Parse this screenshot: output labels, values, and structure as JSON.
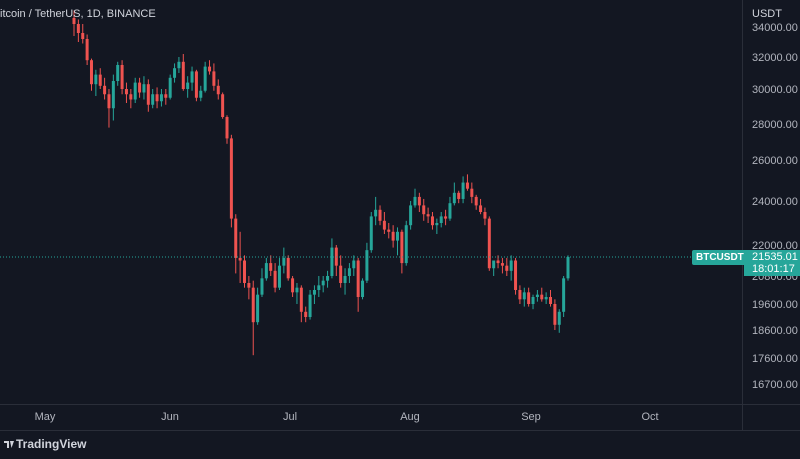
{
  "header": {
    "title": "itcoin / TetherUS, 1D, BINANCE"
  },
  "price_axis": {
    "unit": "USDT"
  },
  "current": {
    "symbol": "BTCUSDT",
    "price": "21535.01",
    "countdown": "18:01:17"
  },
  "footer": {
    "brand": "TradingView"
  },
  "colors": {
    "up": "#26a69a",
    "down": "#ef5350",
    "bg": "#131722",
    "grid": "#1e222d",
    "last_line": "#26a69a"
  },
  "chart_data": {
    "type": "candlestick",
    "title": "itcoin / TetherUS, 1D, BINANCE",
    "ylabel": "USDT",
    "y_ticks": [
      "34000.00",
      "32000.00",
      "30000.00",
      "28000.00",
      "26000.00",
      "24000.00",
      "22000.00",
      "20800.00",
      "19600.00",
      "18600.00",
      "17600.00",
      "16700.00"
    ],
    "x_ticks": [
      "May",
      "Jun",
      "Jul",
      "Aug",
      "Sep",
      "Oct"
    ],
    "scale": "log",
    "ylim": [
      16000,
      35500
    ],
    "series": [
      {
        "values": [
          [
            34600,
            35100,
            33400,
            34200
          ],
          [
            34200,
            34500,
            33000,
            33600
          ],
          [
            33600,
            34200,
            32900,
            33200
          ],
          [
            33200,
            33500,
            31500,
            31800
          ],
          [
            31800,
            31900,
            29900,
            30300
          ],
          [
            30300,
            31200,
            29600,
            30900
          ],
          [
            30900,
            31300,
            30000,
            30200
          ],
          [
            30200,
            30700,
            29400,
            29700
          ],
          [
            29700,
            30000,
            27800,
            28900
          ],
          [
            28900,
            30900,
            28200,
            30500
          ],
          [
            30500,
            31700,
            30200,
            31500
          ],
          [
            31500,
            31800,
            29700,
            30000
          ],
          [
            30000,
            30400,
            29200,
            29700
          ],
          [
            29700,
            30000,
            28900,
            29400
          ],
          [
            29400,
            30700,
            29200,
            30400
          ],
          [
            30400,
            30700,
            29500,
            29800
          ],
          [
            29800,
            30800,
            29400,
            30300
          ],
          [
            30300,
            30600,
            28700,
            29100
          ],
          [
            29100,
            30000,
            28900,
            29700
          ],
          [
            29700,
            30100,
            28900,
            29300
          ],
          [
            29300,
            30000,
            29000,
            29700
          ],
          [
            29700,
            30000,
            29100,
            29500
          ],
          [
            29500,
            30900,
            29400,
            30700
          ],
          [
            30700,
            31600,
            30400,
            31300
          ],
          [
            31300,
            32000,
            31000,
            31700
          ],
          [
            31700,
            32200,
            29900,
            30000
          ],
          [
            30000,
            30800,
            29500,
            30400
          ],
          [
            30400,
            31400,
            29900,
            31100
          ],
          [
            31100,
            31200,
            29300,
            29500
          ],
          [
            29500,
            30200,
            29300,
            29900
          ],
          [
            29900,
            31700,
            29800,
            31400
          ],
          [
            31400,
            31800,
            30900,
            31100
          ],
          [
            31100,
            31600,
            29900,
            30200
          ],
          [
            30200,
            30600,
            29400,
            29700
          ],
          [
            29700,
            29800,
            28300,
            28400
          ],
          [
            28400,
            28500,
            26900,
            27200
          ],
          [
            27200,
            27400,
            22800,
            23200
          ],
          [
            23200,
            23400,
            20900,
            21500
          ],
          [
            21500,
            22600,
            20500,
            21400
          ],
          [
            21400,
            21600,
            20300,
            20500
          ],
          [
            20500,
            20800,
            19800,
            20300
          ],
          [
            20300,
            20600,
            17700,
            18900
          ],
          [
            18900,
            20300,
            18800,
            20000
          ],
          [
            20000,
            21100,
            19900,
            20700
          ],
          [
            20700,
            21500,
            20600,
            21300
          ],
          [
            21300,
            21600,
            20800,
            21000
          ],
          [
            21000,
            21300,
            20100,
            20300
          ],
          [
            20300,
            21500,
            20200,
            21200
          ],
          [
            21200,
            21900,
            20900,
            21500
          ],
          [
            21500,
            21600,
            20600,
            20700
          ],
          [
            20700,
            20800,
            19900,
            20100
          ],
          [
            20100,
            20500,
            19600,
            20300
          ],
          [
            20300,
            20400,
            18900,
            19300
          ],
          [
            19300,
            19500,
            18900,
            19100
          ],
          [
            19100,
            20200,
            19000,
            20000
          ],
          [
            20000,
            20400,
            19600,
            20200
          ],
          [
            20200,
            20800,
            19900,
            20400
          ],
          [
            20400,
            20800,
            20100,
            20600
          ],
          [
            20600,
            21000,
            20300,
            20800
          ],
          [
            20800,
            22300,
            20700,
            21900
          ],
          [
            21900,
            22000,
            20800,
            21200
          ],
          [
            21200,
            21600,
            20300,
            20500
          ],
          [
            20500,
            21100,
            20000,
            20800
          ],
          [
            20800,
            21300,
            20500,
            21100
          ],
          [
            21100,
            21600,
            20800,
            21400
          ],
          [
            21400,
            21500,
            19300,
            19900
          ],
          [
            19900,
            20700,
            19800,
            20600
          ],
          [
            20600,
            22100,
            20500,
            21800
          ],
          [
            21800,
            23500,
            21700,
            23300
          ],
          [
            23300,
            24200,
            22900,
            23600
          ],
          [
            23600,
            23800,
            22900,
            23100
          ],
          [
            23100,
            23500,
            22500,
            22700
          ],
          [
            22700,
            23000,
            22300,
            22600
          ],
          [
            22600,
            22900,
            21900,
            22200
          ],
          [
            22200,
            22800,
            21600,
            22600
          ],
          [
            22600,
            22700,
            20900,
            21300
          ],
          [
            21300,
            23100,
            21200,
            22900
          ],
          [
            22900,
            24000,
            22700,
            23800
          ],
          [
            23800,
            24600,
            23700,
            24200
          ],
          [
            24200,
            24400,
            23500,
            23800
          ],
          [
            23800,
            24100,
            23100,
            23400
          ],
          [
            23400,
            23700,
            23000,
            23300
          ],
          [
            23300,
            23500,
            22700,
            22900
          ],
          [
            22900,
            23200,
            22500,
            23000
          ],
          [
            23000,
            23500,
            22800,
            23300
          ],
          [
            23300,
            23600,
            22900,
            23200
          ],
          [
            23200,
            24200,
            23100,
            23900
          ],
          [
            23900,
            24900,
            23800,
            24400
          ],
          [
            24400,
            24500,
            23900,
            24100
          ],
          [
            24100,
            25200,
            23900,
            24900
          ],
          [
            24900,
            25300,
            24500,
            24600
          ],
          [
            24600,
            24900,
            23900,
            24200
          ],
          [
            24200,
            24300,
            23600,
            23800
          ],
          [
            23800,
            24100,
            23400,
            23500
          ],
          [
            23500,
            23700,
            22900,
            23200
          ],
          [
            23200,
            23300,
            21000,
            21100
          ],
          [
            21100,
            21400,
            20800,
            21400
          ],
          [
            21400,
            21600,
            21100,
            21300
          ],
          [
            21300,
            21500,
            20900,
            21200
          ],
          [
            21200,
            21500,
            20800,
            21000
          ],
          [
            21000,
            21600,
            20600,
            21400
          ],
          [
            21400,
            21500,
            20000,
            20200
          ],
          [
            20200,
            20400,
            19600,
            19800
          ],
          [
            19800,
            20300,
            19500,
            20100
          ],
          [
            20100,
            20300,
            19500,
            19600
          ],
          [
            19600,
            20000,
            19400,
            19900
          ],
          [
            19900,
            20200,
            19700,
            20000
          ],
          [
            20000,
            20300,
            19700,
            19800
          ],
          [
            19800,
            20100,
            19600,
            19900
          ],
          [
            19900,
            20200,
            19500,
            19600
          ],
          [
            19600,
            19800,
            18600,
            18800
          ],
          [
            18800,
            19400,
            18500,
            19300
          ],
          [
            19300,
            20800,
            19100,
            20700
          ],
          [
            20700,
            21600,
            20600,
            21535
          ]
        ]
      }
    ]
  }
}
